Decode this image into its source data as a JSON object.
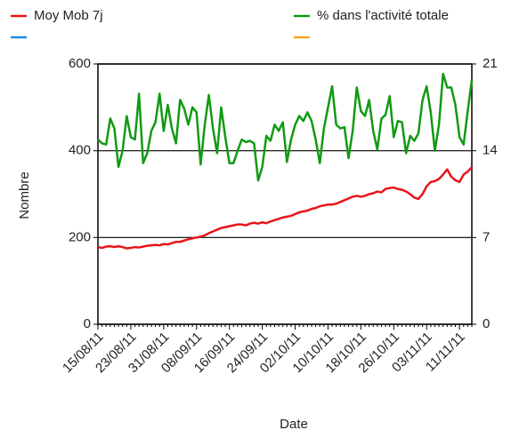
{
  "chart_data": {
    "type": "line",
    "xlabel": "Date",
    "ylabel": "Nombre",
    "categories": [
      "15/08/11",
      null,
      null,
      null,
      null,
      null,
      null,
      null,
      "23/08/11",
      null,
      null,
      null,
      null,
      null,
      null,
      null,
      "31/08/11",
      null,
      null,
      null,
      null,
      null,
      null,
      null,
      "08/09/11",
      null,
      null,
      null,
      null,
      null,
      null,
      null,
      "16/09/11",
      null,
      null,
      null,
      null,
      null,
      null,
      null,
      "24/09/11",
      null,
      null,
      null,
      null,
      null,
      null,
      null,
      "02/10/11",
      null,
      null,
      null,
      null,
      null,
      null,
      null,
      "10/10/11",
      null,
      null,
      null,
      null,
      null,
      null,
      null,
      "18/10/11",
      null,
      null,
      null,
      null,
      null,
      null,
      null,
      "26/10/11",
      null,
      null,
      null,
      null,
      null,
      null,
      null,
      "03/11/11",
      null,
      null,
      null,
      null,
      null,
      null,
      null,
      "11/11/11",
      null,
      null,
      null
    ],
    "series": [
      {
        "name": "Moy Mob 7j",
        "color": "#e8141a",
        "axis": "y",
        "values": [
          178,
          176,
          179,
          180,
          178,
          180,
          178,
          175,
          176,
          178,
          177,
          179,
          181,
          182,
          183,
          182,
          185,
          184,
          187,
          190,
          190,
          193,
          196,
          198,
          200,
          202,
          205,
          210,
          214,
          218,
          222,
          224,
          226,
          228,
          230,
          230,
          228,
          232,
          234,
          232,
          235,
          233,
          237,
          240,
          243,
          246,
          248,
          250,
          254,
          258,
          260,
          262,
          266,
          268,
          272,
          274,
          276,
          276,
          278,
          282,
          286,
          290,
          294,
          296,
          294,
          296,
          300,
          302,
          306,
          304,
          312,
          314,
          315,
          312,
          310,
          306,
          300,
          292,
          289,
          300,
          318,
          328,
          330,
          335,
          345,
          357,
          340,
          332,
          328,
          345,
          352,
          362
        ]
      },
      {
        "name": "% dans l'activité totale",
        "color": "#119a11",
        "axis": "y2",
        "values": [
          14.9,
          14.6,
          14.5,
          16.6,
          15.8,
          12.7,
          14.0,
          16.8,
          15.1,
          14.9,
          18.6,
          13.0,
          13.8,
          15.6,
          16.3,
          18.6,
          15.6,
          17.7,
          15.8,
          14.6,
          18.1,
          17.4,
          16.1,
          17.5,
          17.1,
          12.9,
          16.1,
          18.5,
          15.8,
          13.8,
          17.5,
          15.1,
          13.0,
          13.0,
          14.0,
          14.9,
          14.7,
          14.8,
          14.6,
          11.6,
          12.7,
          15.2,
          14.8,
          16.1,
          15.6,
          16.3,
          13.1,
          14.9,
          16.1,
          16.8,
          16.4,
          17.1,
          16.4,
          14.9,
          13.0,
          15.8,
          17.5,
          19.2,
          16.1,
          15.8,
          15.9,
          13.4,
          15.6,
          19.1,
          17.2,
          16.8,
          18.1,
          15.6,
          14.1,
          16.6,
          16.9,
          18.4,
          15.1,
          16.4,
          16.3,
          13.8,
          15.2,
          14.8,
          15.4,
          18.1,
          19.2,
          17.1,
          14.0,
          16.1,
          20.2,
          19.1,
          19.1,
          17.7,
          15.1,
          14.5,
          17.2,
          19.7
        ]
      }
    ],
    "ylim": [
      0,
      600
    ],
    "yticks": [
      0,
      200,
      400,
      600
    ],
    "y2lim": [
      0,
      21
    ],
    "y2ticks": [
      0,
      7,
      14,
      21
    ],
    "grid": true
  }
}
